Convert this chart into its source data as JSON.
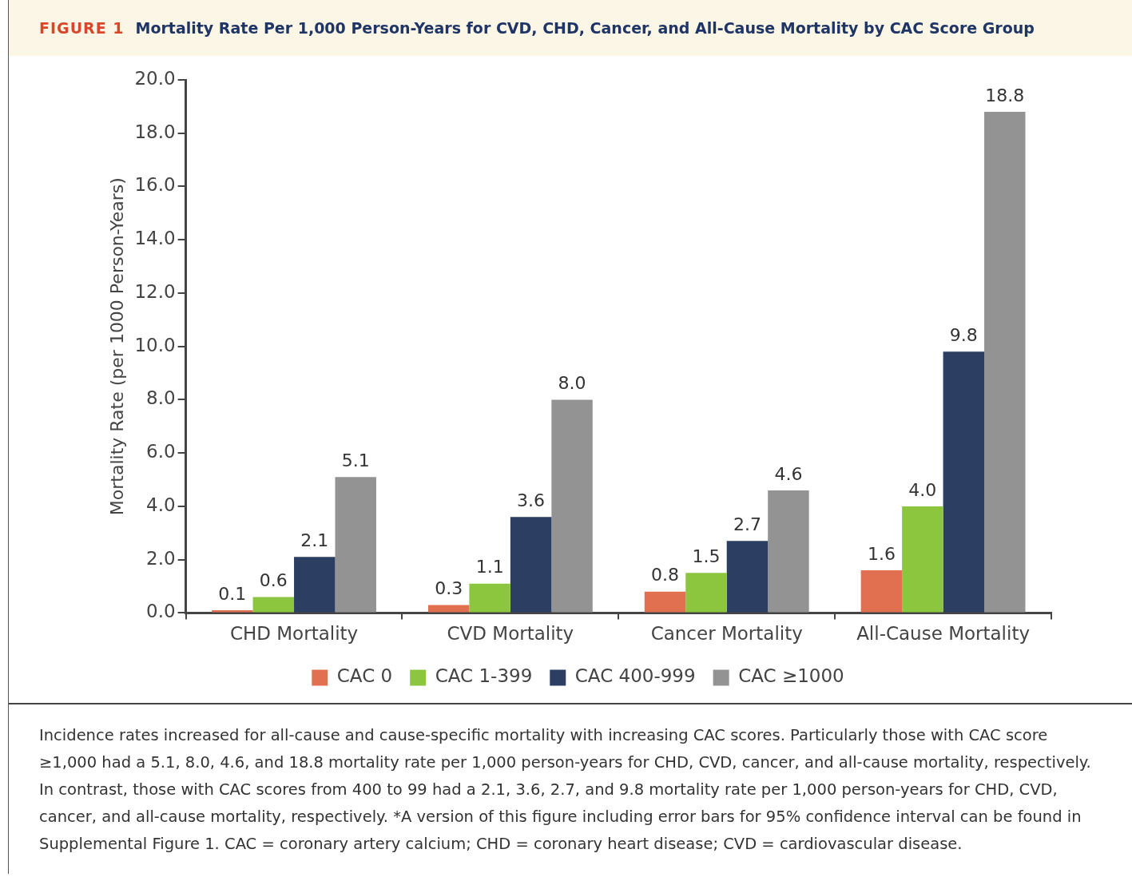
{
  "chart_data": {
    "type": "bar",
    "title": "Mortality Rate Per 1,000 Person-Years for CVD, CHD, Cancer, and All-Cause Mortality by CAC Score Group",
    "ylabel": "Mortality Rate (per 1000 Person-Years)",
    "categories": [
      "CHD Mortality",
      "CVD Mortality",
      "Cancer Mortality",
      "All-Cause Mortality"
    ],
    "series": [
      {
        "name": "CAC 0",
        "color": "#e0704f",
        "values": [
          0.1,
          0.3,
          0.8,
          1.6
        ],
        "value_labels": [
          "0.1",
          "0.3",
          "0.8",
          "1.6"
        ]
      },
      {
        "name": "CAC 1-399",
        "color": "#8cc63f",
        "values": [
          0.6,
          1.1,
          1.5,
          4.0
        ],
        "value_labels": [
          "0.6",
          "1.1",
          "1.5",
          "4.0"
        ]
      },
      {
        "name": "CAC 400-999",
        "color": "#2d3e63",
        "values": [
          2.1,
          3.6,
          2.7,
          9.8
        ],
        "value_labels": [
          "2.1",
          "3.6",
          "2.7",
          "9.8"
        ]
      },
      {
        "name": "CAC ≥1000",
        "color": "#939393",
        "values": [
          5.1,
          8.0,
          4.6,
          18.8
        ],
        "value_labels": [
          "5.1",
          "8.0",
          "4.6",
          "18.8"
        ]
      }
    ],
    "ylim": [
      0,
      20
    ],
    "yticks": [
      {
        "value": 0,
        "label": "0.0"
      },
      {
        "value": 2,
        "label": "2.0"
      },
      {
        "value": 4,
        "label": "4.0"
      },
      {
        "value": 6,
        "label": "6.0"
      },
      {
        "value": 8,
        "label": "8.0"
      },
      {
        "value": 10,
        "label": "10.0"
      },
      {
        "value": 12,
        "label": "12.0"
      },
      {
        "value": 14,
        "label": "14.0"
      },
      {
        "value": 16,
        "label": "16.0"
      },
      {
        "value": 18,
        "label": "18.0"
      },
      {
        "value": 20,
        "label": "20.0"
      }
    ],
    "legend": "bottom",
    "annotations": [
      "FIGURE 1",
      "Incidence rates increased for all-cause and cause-specific mortality with increasing CAC scores. Particularly those with CAC score ≥1,000 had a 5.1, 8.0, 4.6, and 18.8 mortality rate per 1,000 person-years for CHD, CVD, cancer, and all-cause mortality, respectively. In contrast, those with CAC scores from 400 to 99 had a 2.1, 3.6, 2.7, and 9.8 mortality rate per 1,000 person-years for CHD, CVD, cancer, and all-cause mortality, respectively. *A version of this figure including error bars for 95% confidence interval can be found in Supplemental Figure 1. CAC = coronary artery calcium; CHD = coronary heart disease; CVD = cardiovascular disease."
    ]
  }
}
